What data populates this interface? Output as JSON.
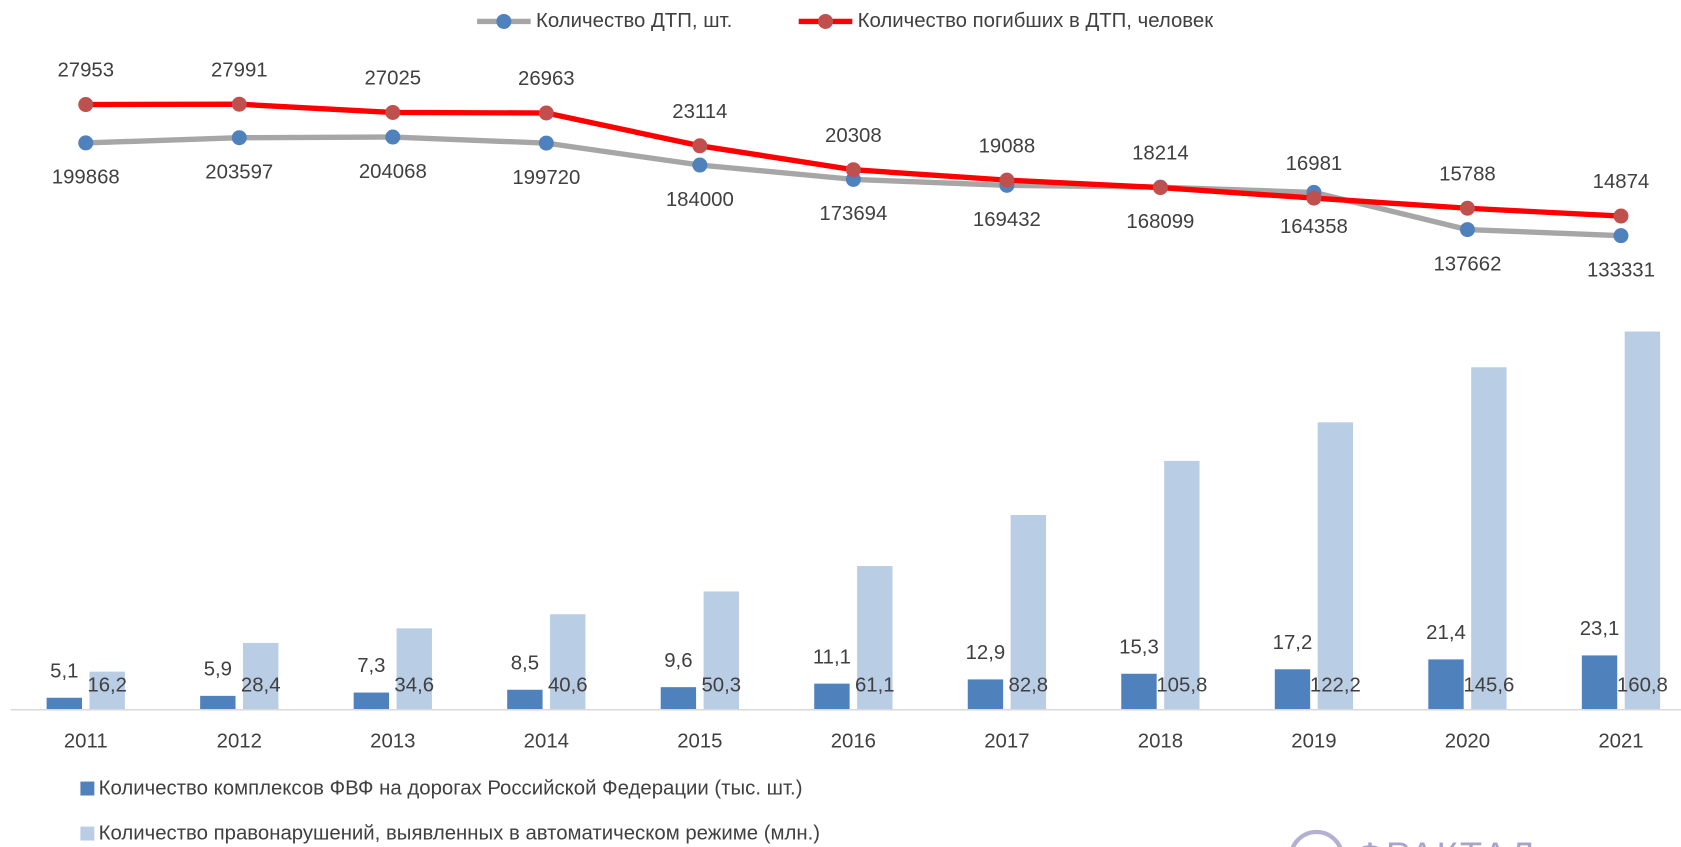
{
  "chart_data": [
    {
      "type": "line",
      "series": [
        {
          "name": "Количество ДТП, шт.",
          "color": "#a6a6a6",
          "marker_color": "#4f81bd",
          "values": [
            199868,
            203597,
            204068,
            199720,
            184000,
            173694,
            169432,
            168099,
            164358,
            137662,
            133331
          ]
        },
        {
          "name": "Количество погибших в ДТП, человек",
          "color": "#ff0000",
          "marker_color": "#c0504d",
          "axis": "y2",
          "values": [
            27953,
            27991,
            27025,
            26963,
            23114,
            20308,
            19088,
            18214,
            16981,
            15788,
            14874
          ]
        }
      ],
      "ylim": [
        87000,
        287000
      ],
      "y2lim": [
        5000,
        37700
      ],
      "legend": "top"
    },
    {
      "type": "bar",
      "categories": [
        "2011",
        "2012",
        "2013",
        "2014",
        "2015",
        "2016",
        "2017",
        "2018",
        "2019",
        "2020",
        "2021"
      ],
      "series": [
        {
          "name": "Количество комплексов ФВФ на дорогах Российской Федерации (тыс. шт.)",
          "color": "#4f81bd",
          "values": [
            5.1,
            5.9,
            7.3,
            8.5,
            9.6,
            11.1,
            12.9,
            15.3,
            17.2,
            21.4,
            23.1
          ],
          "value_labels": [
            "5,1",
            "5,9",
            "7,3",
            "8,5",
            "9,6",
            "11,1",
            "12,9",
            "15,3",
            "17,2",
            "21,4",
            "23,1"
          ]
        },
        {
          "name": "Количество правонарушений, выявленных в автоматическом режиме (млн.)",
          "color": "#b9cde5",
          "values": [
            16.2,
            28.4,
            34.6,
            40.6,
            50.3,
            61.1,
            82.8,
            105.8,
            122.2,
            145.6,
            160.8
          ],
          "value_labels": [
            "16,2",
            "28,4",
            "34,6",
            "40,6",
            "50,3",
            "61,1",
            "82,8",
            "105,8",
            "122,2",
            "145,6",
            "160,8"
          ]
        }
      ],
      "ylim": [
        0,
        165
      ],
      "legend": "bottom"
    }
  ],
  "logo": "ФРАКТАЛ"
}
